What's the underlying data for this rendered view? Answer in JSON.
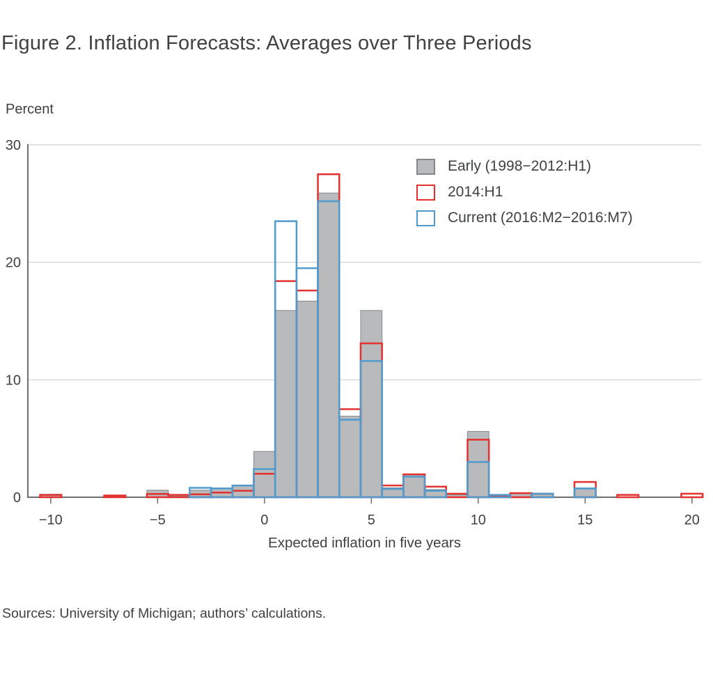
{
  "title": "Figure 2. Inflation Forecasts: Averages over Three Periods",
  "sources": "Sources: University of Michigan; authors’ calculations.",
  "chart_data": {
    "type": "bar",
    "subtype": "overlaid-histogram",
    "title": "Figure 2. Inflation Forecasts: Averages over Three Periods",
    "xlabel": "Expected inflation in five years",
    "ylabel": "Percent",
    "xlim": [
      -11.07,
      20.43
    ],
    "ylim": [
      0,
      30
    ],
    "x_ticks": [
      -10,
      -5,
      0,
      5,
      10,
      15,
      20
    ],
    "x_tick_labels": [
      "−10",
      "−5",
      "0",
      "5",
      "10",
      "15",
      "20"
    ],
    "y_ticks": [
      0,
      10,
      20,
      30
    ],
    "y_tick_labels": [
      "0",
      "10",
      "20",
      "30"
    ],
    "bin_width": 1,
    "grid": "horizontal",
    "legend_position": "upper-right-inside",
    "axis_color": "#6d6e70",
    "grid_color": "#d9d9d9",
    "text_color": "#3f4042",
    "categories": [
      -10,
      -7,
      -5,
      -4,
      -3,
      -2,
      -1,
      0,
      1,
      2,
      3,
      4,
      5,
      6,
      7,
      8,
      9,
      10,
      11,
      12,
      13,
      15,
      17,
      20
    ],
    "series": [
      {
        "name": "Early (1998−2012:H1)",
        "style": "fill",
        "color": "#b9babc",
        "edge": "#85878a",
        "values": [
          0.25,
          0,
          0.6,
          0.1,
          0.6,
          0.72,
          1.0,
          3.9,
          15.9,
          16.7,
          25.9,
          6.9,
          15.9,
          0.8,
          1.9,
          0.65,
          0.2,
          5.6,
          0,
          0.3,
          0.25,
          0.7,
          0,
          0
        ]
      },
      {
        "name": "2014:H1",
        "style": "outline",
        "color": "#e2312e",
        "values": [
          0.2,
          0.15,
          0.28,
          0.2,
          0.25,
          0.4,
          0.55,
          2.0,
          18.4,
          17.6,
          27.5,
          7.5,
          13.1,
          1.0,
          1.95,
          0.9,
          0.3,
          4.9,
          0.15,
          0.35,
          0.3,
          1.3,
          0.2,
          0.3
        ]
      },
      {
        "name": "Current (2016:M2−2016:M7)",
        "style": "outline",
        "color": "#4f9bd0",
        "values": [
          0,
          0,
          0,
          0,
          0.8,
          0.75,
          1.0,
          2.4,
          23.5,
          19.5,
          25.2,
          6.6,
          11.6,
          0.7,
          1.75,
          0.55,
          0,
          3.0,
          0.2,
          0,
          0.3,
          0.75,
          0,
          0
        ]
      }
    ]
  }
}
